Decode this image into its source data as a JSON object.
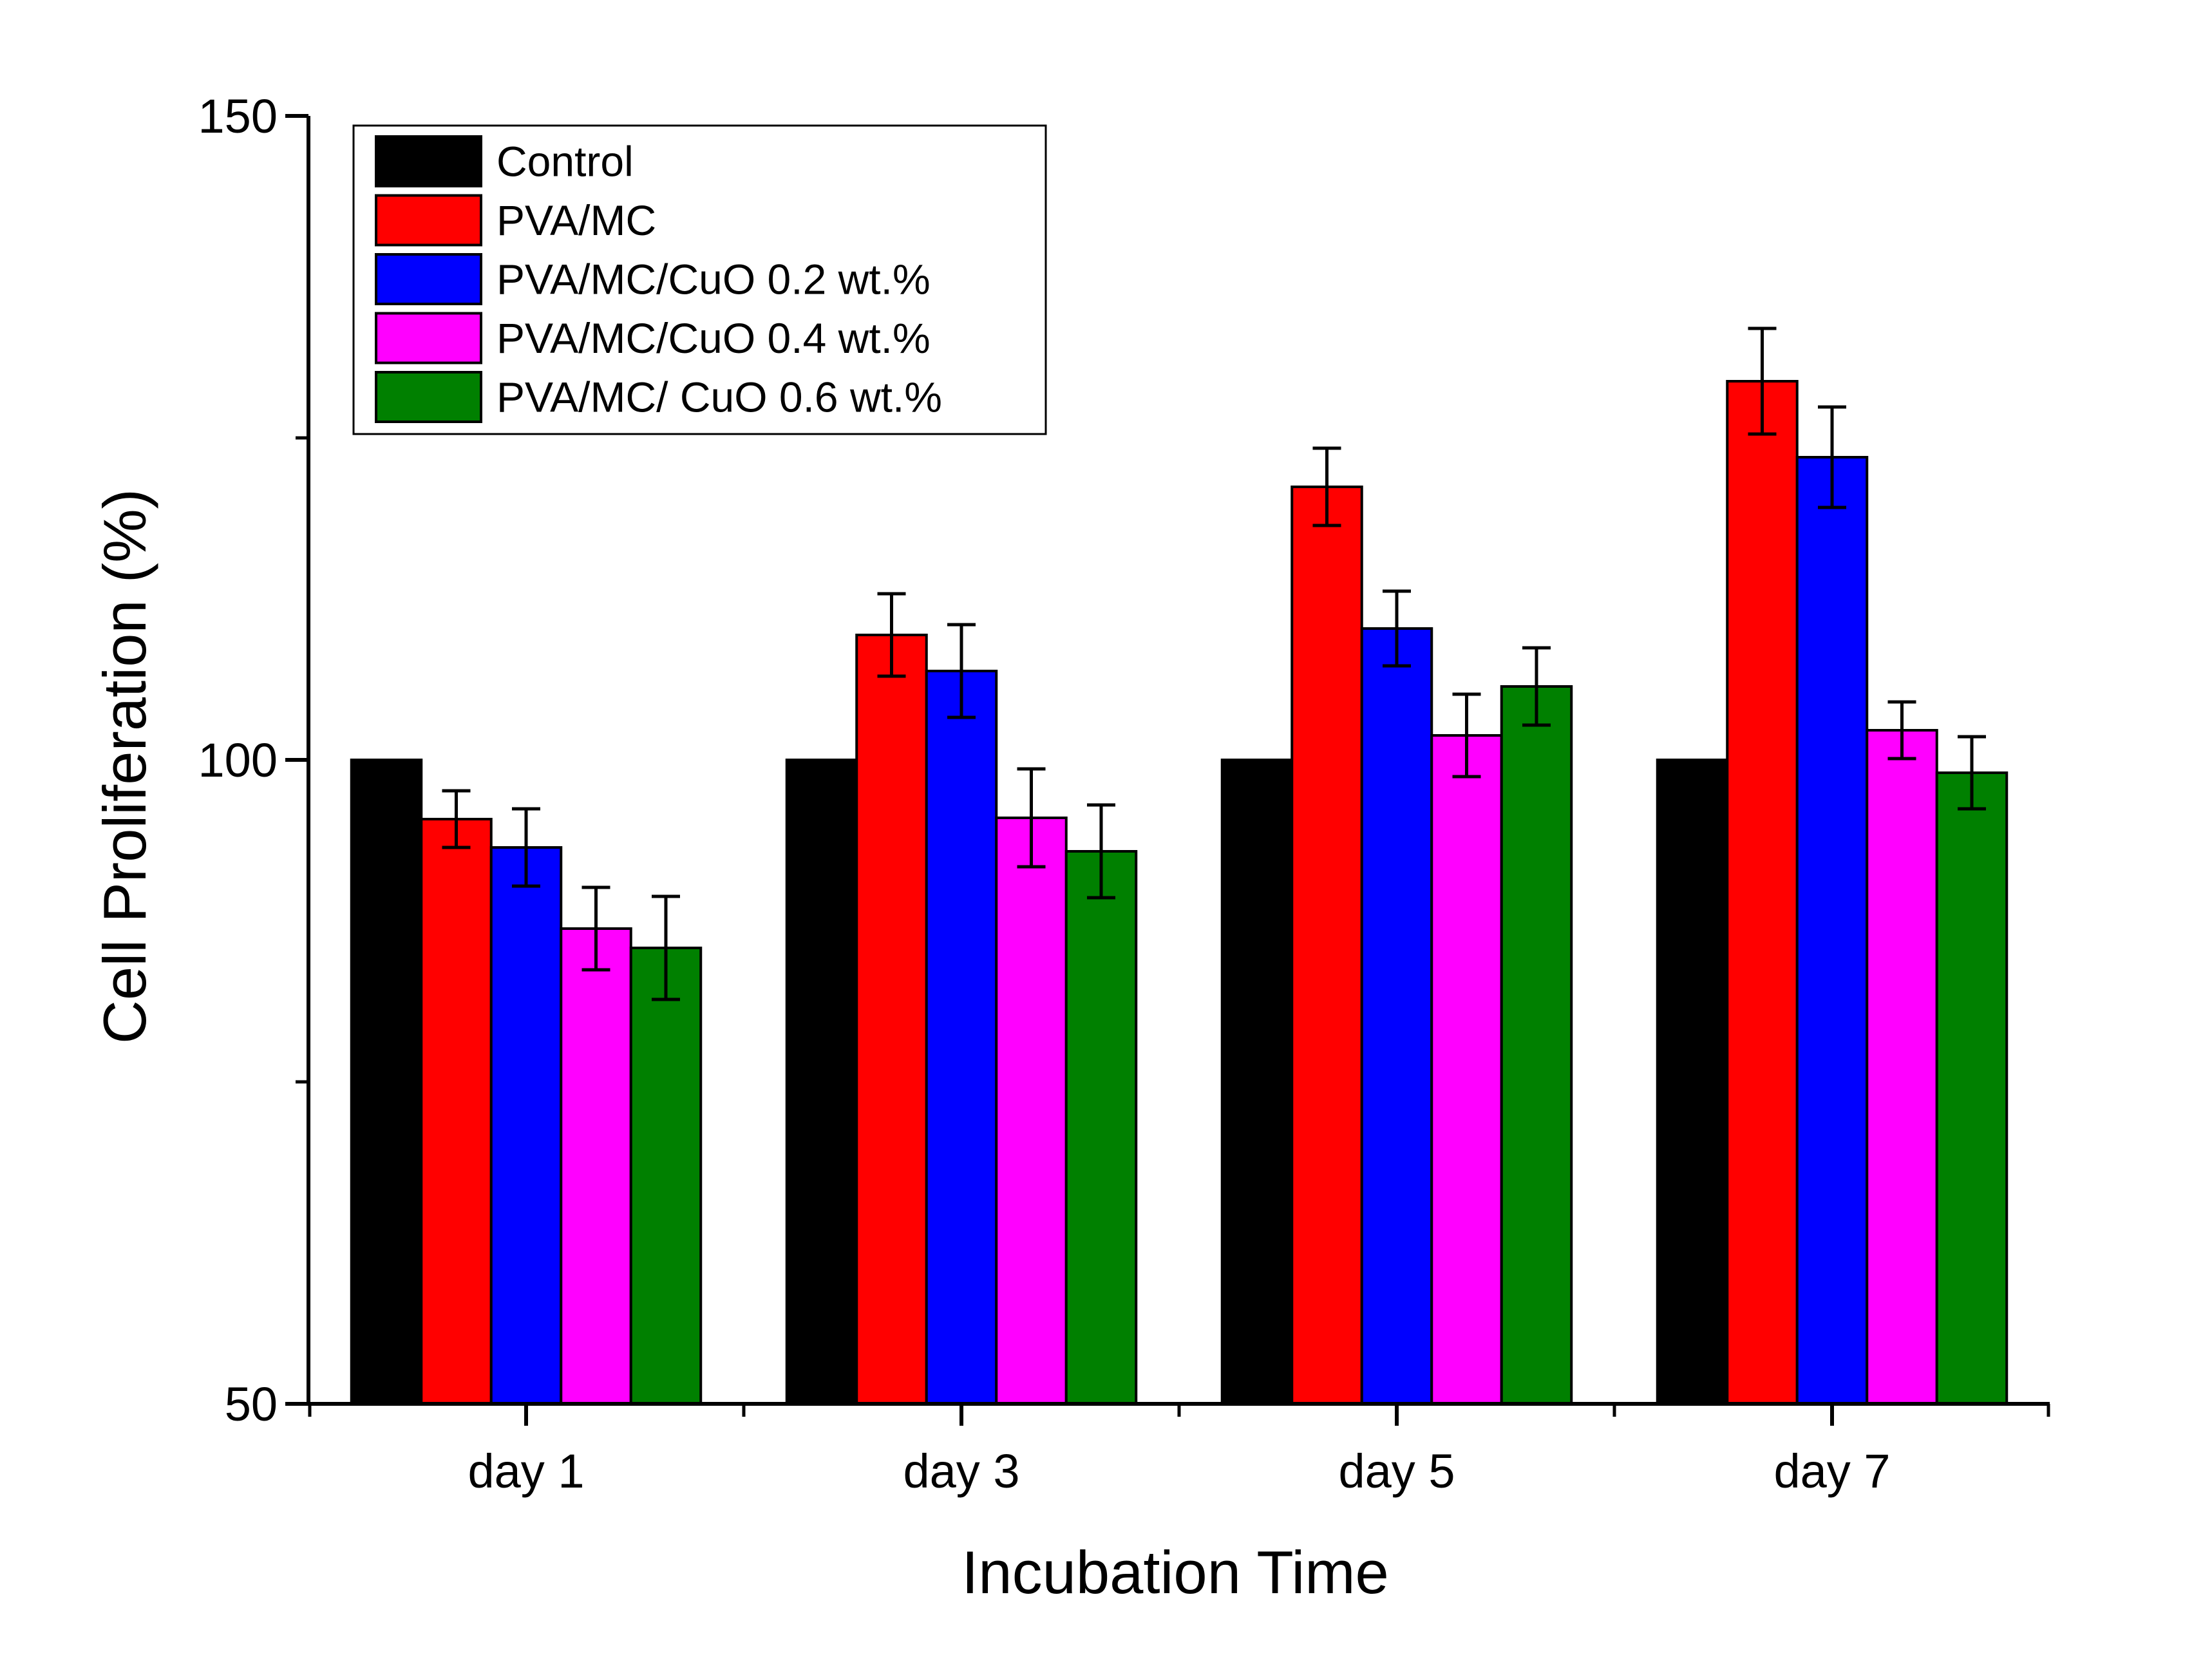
{
  "chart_data": {
    "type": "bar",
    "title": "",
    "xlabel": "Incubation Time",
    "ylabel": "Cell Proliferation (%)",
    "ylim": [
      50,
      150
    ],
    "yticks": [
      50,
      100,
      150
    ],
    "y_minor_ticks": [
      75,
      125
    ],
    "categories": [
      "day 1",
      "day 3",
      "day 5",
      "day 7"
    ],
    "legend_position": "top-left",
    "grid": false,
    "series": [
      {
        "name": "Control",
        "color": "#000000",
        "values": [
          100,
          100,
          100,
          100
        ],
        "errors": [
          0,
          0,
          0,
          0
        ]
      },
      {
        "name": "PVA/MC",
        "color": "#ff0000",
        "values": [
          95.4,
          109.7,
          121.2,
          129.4
        ],
        "errors": [
          2.2,
          3.2,
          3.0,
          4.1
        ]
      },
      {
        "name": "PVA/MC/CuO 0.2 wt.%",
        "color": "#0000ff",
        "values": [
          93.2,
          106.9,
          110.2,
          123.5
        ],
        "errors": [
          3.0,
          3.6,
          2.9,
          3.9
        ]
      },
      {
        "name": "PVA/MC/CuO 0.4 wt.%",
        "color": "#ff00ff",
        "values": [
          86.9,
          95.5,
          101.9,
          102.3
        ],
        "errors": [
          3.2,
          3.8,
          3.2,
          2.2
        ]
      },
      {
        "name": "PVA/MC/ CuO 0.6 wt.%",
        "color": "#008000",
        "values": [
          85.4,
          92.9,
          105.7,
          99.0
        ],
        "errors": [
          4.0,
          3.6,
          3.0,
          2.8
        ]
      }
    ]
  }
}
